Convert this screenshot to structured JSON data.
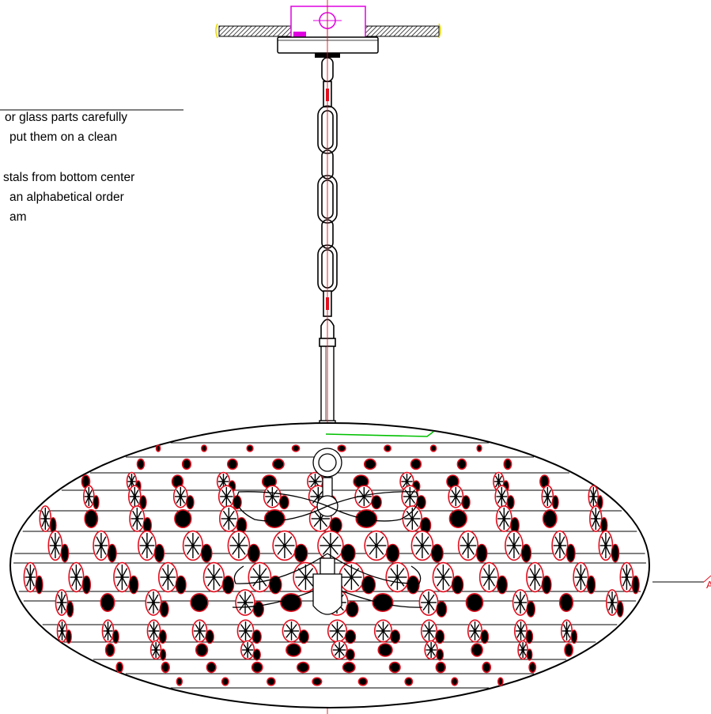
{
  "notes": {
    "line1": "or glass parts carefully",
    "line2": "put them on a clean",
    "line3": "stals from bottom center",
    "line4": "an alphabetical order",
    "line5": "am"
  },
  "callout": {
    "label": "A"
  },
  "colors": {
    "outline": "#000000",
    "crystal_ring": "#e01020",
    "centerline": "#e01020",
    "canopy_bracket": "#e000e0",
    "wire": "#00c000",
    "highlight": "#f0e000"
  }
}
